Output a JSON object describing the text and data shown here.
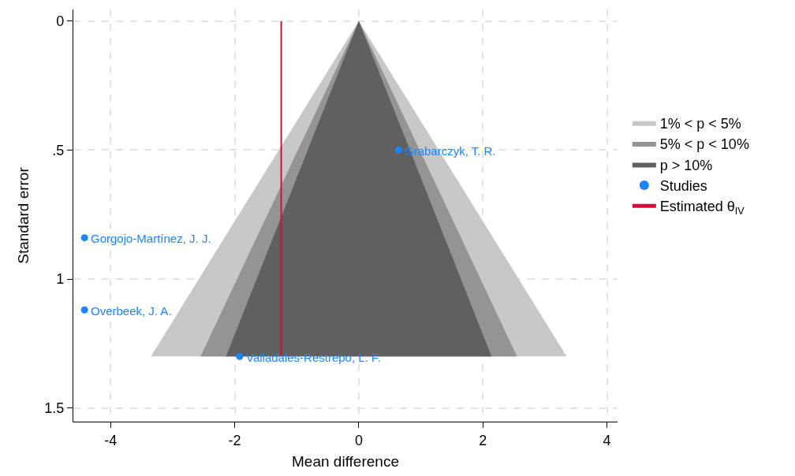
{
  "chart_data": {
    "type": "scatter",
    "xlabel": "Mean difference",
    "ylabel": "Standard error",
    "series": [
      {
        "name": "1% < p < 5%",
        "type": "area",
        "color": "#c8c8c8",
        "x": [
          -3.35,
          0,
          3.35,
          -3.35
        ],
        "values": [
          1.3,
          0,
          1.3,
          1.3
        ]
      },
      {
        "name": "5% < p < 10%",
        "type": "area",
        "color": "#949494",
        "x": [
          -2.55,
          0,
          2.55,
          -2.55
        ],
        "values": [
          1.3,
          0,
          1.3,
          1.3
        ]
      },
      {
        "name": "p > 10%",
        "type": "area",
        "color": "#606060",
        "x": [
          -2.14,
          0,
          2.14,
          -2.14
        ],
        "values": [
          1.3,
          0,
          1.3,
          1.3
        ]
      },
      {
        "name": "Studies",
        "marker": "circle",
        "color": "#1a85ff",
        "x": [
          0.64,
          -4.42,
          -4.42,
          -1.92
        ],
        "values": [
          0.5,
          0.84,
          1.12,
          1.3
        ]
      },
      {
        "name": "Estimated θ$_{IV}$",
        "type": "line",
        "color": "#d0103a",
        "x": [
          -1.25,
          -1.25
        ],
        "values": [
          0,
          1.3
        ]
      }
    ],
    "annotations": [
      {
        "text": "Grabarczyk, T. R.",
        "x": 0.64,
        "y": 0.5
      },
      {
        "text": "Gorgojo-Martínez, J. J.",
        "x": -4.42,
        "y": 0.84
      },
      {
        "text": "Overbeek, J. A.",
        "x": -4.42,
        "y": 1.12
      },
      {
        "text": "Valladales-Restrepo, L. F.",
        "x": -1.92,
        "y": 1.3
      }
    ],
    "xlim": [
      -4.6,
      4.17
    ],
    "xticks": [
      -4,
      -2,
      0,
      2,
      4
    ],
    "ylim": [
      1.553,
      -0.045
    ],
    "yticks": [
      0,
      {
        "value": 0.5,
        "label": ".5"
      },
      1,
      1.5
    ],
    "grid": true,
    "legend": "right"
  }
}
